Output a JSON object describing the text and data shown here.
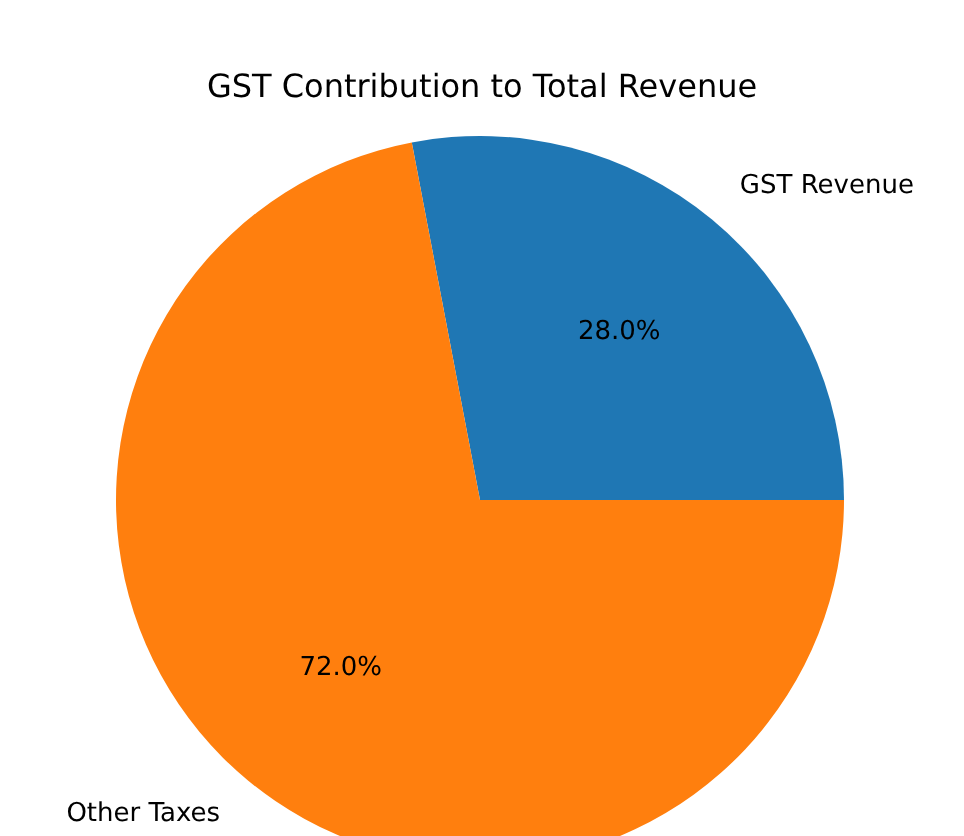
{
  "chart_data": {
    "type": "pie",
    "title": "GST Contribution to Total Revenue",
    "categories": [
      "GST Revenue",
      "Other Taxes"
    ],
    "values": [
      28,
      72
    ],
    "value_labels": [
      "28.0%",
      "72.0%"
    ],
    "colors": [
      "#1f77b4",
      "#ff7f0e"
    ],
    "legend": false
  }
}
